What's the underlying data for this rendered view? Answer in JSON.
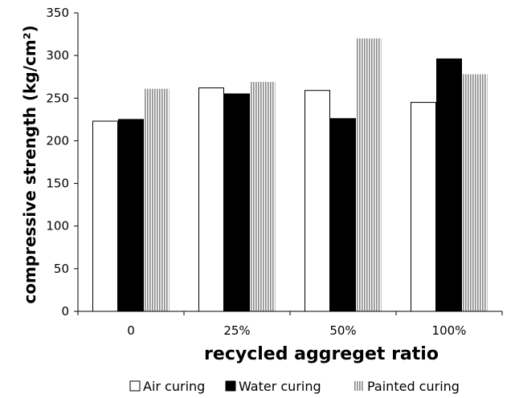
{
  "chart_data": {
    "type": "bar",
    "categories": [
      "0",
      "25%",
      "50%",
      "100%"
    ],
    "series": [
      {
        "name": "Air curing",
        "values": [
          223,
          262,
          259,
          245
        ],
        "fill": "#ffffff",
        "pattern": "none"
      },
      {
        "name": "Water curing",
        "values": [
          225,
          255,
          226,
          296
        ],
        "fill": "#000000",
        "pattern": "none"
      },
      {
        "name": "Painted curing",
        "values": [
          261,
          269,
          320,
          278
        ],
        "fill": "#bbbbbb",
        "pattern": "vertical-stripes"
      }
    ],
    "xlabel": "recycled aggreget ratio",
    "ylabel": "compressive strength (kg/cm²)",
    "ylim": [
      0,
      350
    ],
    "yticks": [
      "0",
      "50",
      "100",
      "150",
      "200",
      "250",
      "300",
      "350"
    ],
    "grid": false,
    "legend_position": "bottom"
  }
}
